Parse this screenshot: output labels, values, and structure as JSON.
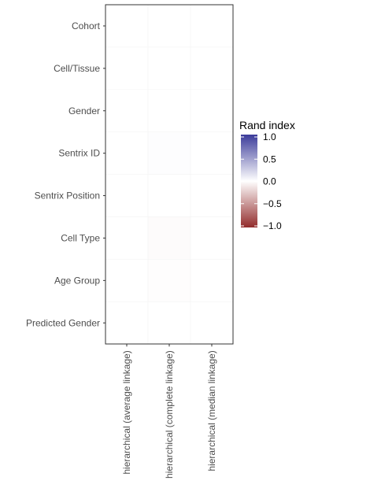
{
  "chart_data": {
    "type": "heatmap",
    "title": "",
    "xlabel": "",
    "ylabel": "",
    "rows": [
      "Cohort",
      "Cell/Tissue",
      "Gender",
      "Sentrix ID",
      "Sentrix Position",
      "Cell Type",
      "Age Group",
      "Predicted Gender"
    ],
    "columns": [
      "hierarchical (average linkage)",
      "hierarchical (complete linkage)",
      "hierarchical (median linkage)"
    ],
    "values": [
      [
        0.0,
        0.0,
        0.0
      ],
      [
        0.0,
        0.0,
        0.0
      ],
      [
        0.0,
        0.0,
        0.0
      ],
      [
        0.0,
        0.01,
        0.0
      ],
      [
        0.0,
        0.0,
        0.0
      ],
      [
        0.0,
        -0.02,
        0.0
      ],
      [
        0.0,
        -0.01,
        0.0
      ],
      [
        0.0,
        0.0,
        0.0
      ]
    ],
    "legend": {
      "title": "Rand index",
      "ticks": [
        1.0,
        0.5,
        0.0,
        -0.5,
        -1.0
      ],
      "tick_labels": [
        "1.0",
        "0.5",
        "0.0",
        "−0.5",
        "−1.0"
      ],
      "range": [
        -1.0,
        1.0
      ],
      "placement": "right",
      "colors": {
        "high": "#3b3b9a",
        "mid": "#ffffff",
        "low": "#922b2b"
      }
    },
    "grid": true
  }
}
